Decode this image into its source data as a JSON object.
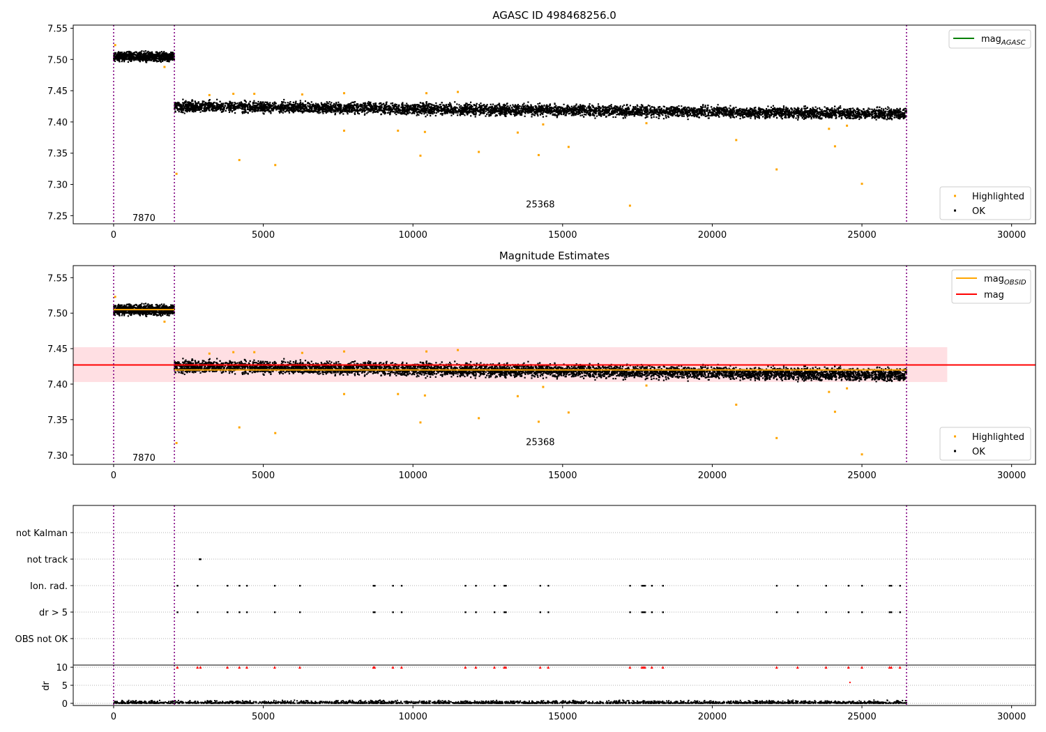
{
  "figure": {
    "title1": "AGASC ID 498468256.0",
    "title2": "Magnitude Estimates"
  },
  "chart_data": [
    {
      "type": "scatter",
      "title": "AGASC ID 498468256.0",
      "xlim": [
        -1350,
        30800
      ],
      "ylim": [
        7.237,
        7.555
      ],
      "xticks": [
        "0",
        "5000",
        "10000",
        "15000",
        "20000",
        "25000",
        "30000"
      ],
      "xtick_values": [
        0,
        5000,
        10000,
        15000,
        20000,
        25000,
        30000
      ],
      "yticks": [
        "7.25",
        "7.30",
        "7.35",
        "7.40",
        "7.45",
        "7.50",
        "7.55"
      ],
      "ytick_values": [
        7.25,
        7.3,
        7.35,
        7.4,
        7.45,
        7.5,
        7.55
      ],
      "vlines": [
        0,
        2030,
        26490
      ],
      "obsid_labels": [
        {
          "text": "7870",
          "x": 1000,
          "y": 7.247
        },
        {
          "text": "25368",
          "x": 14240,
          "y": 7.269
        }
      ],
      "ok_bands": [
        {
          "x0": 0,
          "x1": 2030,
          "y0": 7.497,
          "y1": 7.512
        },
        {
          "x0": 2030,
          "x1": 26490,
          "y0_start": 7.416,
          "y1_start": 7.434,
          "y0_end": 7.404,
          "y1_end": 7.422
        }
      ],
      "highlighted": [
        [
          50,
          7.523
        ],
        [
          1700,
          7.488
        ],
        [
          2100,
          7.317
        ],
        [
          4200,
          7.339
        ],
        [
          5400,
          7.331
        ],
        [
          7700,
          7.386
        ],
        [
          9500,
          7.386
        ],
        [
          10250,
          7.346
        ],
        [
          10400,
          7.384
        ],
        [
          12200,
          7.352
        ],
        [
          13500,
          7.383
        ],
        [
          14200,
          7.347
        ],
        [
          14350,
          7.396
        ],
        [
          15200,
          7.36
        ],
        [
          17250,
          7.266
        ],
        [
          17800,
          7.398
        ],
        [
          20800,
          7.371
        ],
        [
          22150,
          7.324
        ],
        [
          24100,
          7.361
        ],
        [
          25000,
          7.301
        ],
        [
          24500,
          7.394
        ],
        [
          3200,
          7.443
        ],
        [
          4000,
          7.445
        ],
        [
          4700,
          7.445
        ],
        [
          6300,
          7.444
        ],
        [
          7700,
          7.446
        ],
        [
          10450,
          7.446
        ],
        [
          11500,
          7.448
        ],
        [
          23900,
          7.389
        ]
      ],
      "legend_top": [
        {
          "label": "mag",
          "sub": "AGASC",
          "color": "#008000"
        }
      ],
      "legend_bottom": [
        {
          "label": "Highlighted",
          "color": "#ffa500"
        },
        {
          "label": "OK",
          "color": "#000000"
        }
      ]
    },
    {
      "type": "scatter",
      "title": "Magnitude Estimates",
      "xlim": [
        -1350,
        30800
      ],
      "ylim": [
        7.287,
        7.567
      ],
      "xticks": [
        "0",
        "5000",
        "10000",
        "15000",
        "20000",
        "25000",
        "30000"
      ],
      "xtick_values": [
        0,
        5000,
        10000,
        15000,
        20000,
        25000,
        30000
      ],
      "yticks": [
        "7.30",
        "7.35",
        "7.40",
        "7.45",
        "7.50",
        "7.55"
      ],
      "ytick_values": [
        7.3,
        7.35,
        7.4,
        7.45,
        7.5,
        7.55
      ],
      "vlines": [
        0,
        2030,
        26490
      ],
      "mag": 7.427,
      "mag_band": [
        7.403,
        7.452
      ],
      "mag_band_xrange": [
        -1350,
        27850
      ],
      "mag_obsid": [
        {
          "x0": 0,
          "x1": 2030,
          "y": 7.505
        },
        {
          "x0": 2030,
          "x1": 26490,
          "y": 7.42
        }
      ],
      "obsid_labels": [
        {
          "text": "7870",
          "x": 1000,
          "y": 7.297
        },
        {
          "text": "25368",
          "x": 14240,
          "y": 7.319
        }
      ],
      "highlighted_same_as_top": true,
      "legend_top": [
        {
          "label": "mag",
          "sub": "OBSID",
          "color": "#ffa500"
        },
        {
          "label": "mag",
          "sub": "",
          "color": "#ff0000"
        }
      ],
      "legend_bottom": [
        {
          "label": "Highlighted",
          "color": "#ffa500"
        },
        {
          "label": "OK",
          "color": "#000000"
        }
      ]
    },
    {
      "type": "scatter",
      "title": "",
      "categories": [
        "not Kalman",
        "not track",
        "Ion. rad.",
        "dr > 5",
        "OBS not OK"
      ],
      "xlim": [
        -1350,
        30800
      ],
      "vlines": [
        0,
        2030,
        26490
      ],
      "not_track": [
        2870,
        2900
      ],
      "ion_rad": [
        2130,
        2800,
        3800,
        4200,
        4450,
        5380,
        6220,
        8680,
        8720,
        9330,
        9620,
        11750,
        12100,
        12720,
        13050,
        13100,
        14250,
        14520,
        17250,
        17650,
        17700,
        17750,
        17980,
        18350,
        22150,
        22850,
        23800,
        24550,
        25000,
        25920,
        25980,
        26270
      ],
      "dr_gt_5": [
        2130,
        2800,
        3800,
        4200,
        4450,
        5380,
        6220,
        8680,
        8720,
        9330,
        9620,
        11750,
        12100,
        12720,
        13050,
        13100,
        14250,
        14520,
        17250,
        17650,
        17700,
        17750,
        17980,
        18350,
        22150,
        22850,
        23800,
        24550,
        25000,
        25920,
        25980,
        26270
      ]
    },
    {
      "type": "scatter",
      "title": "",
      "ylabel": "dr",
      "xlim": [
        -1350,
        30800
      ],
      "ylim": [
        -0.6,
        10.6
      ],
      "xticks": [
        "0",
        "5000",
        "10000",
        "15000",
        "20000",
        "25000",
        "30000"
      ],
      "xtick_values": [
        0,
        5000,
        10000,
        15000,
        20000,
        25000,
        30000
      ],
      "yticks": [
        "0",
        "5",
        "10"
      ],
      "ytick_values": [
        0,
        5,
        10
      ],
      "vlines": [
        0,
        2030,
        26490
      ],
      "clipped_x": [
        2130,
        2800,
        2900,
        3800,
        4200,
        4450,
        5380,
        6220,
        8680,
        8720,
        9330,
        9620,
        11750,
        12100,
        12720,
        13050,
        13100,
        14250,
        14520,
        17250,
        17650,
        17700,
        17750,
        17980,
        18350,
        22150,
        22850,
        23800,
        24550,
        25000,
        25920,
        25980,
        26270
      ],
      "extra_red": [
        [
          24600,
          5.8
        ]
      ]
    }
  ]
}
